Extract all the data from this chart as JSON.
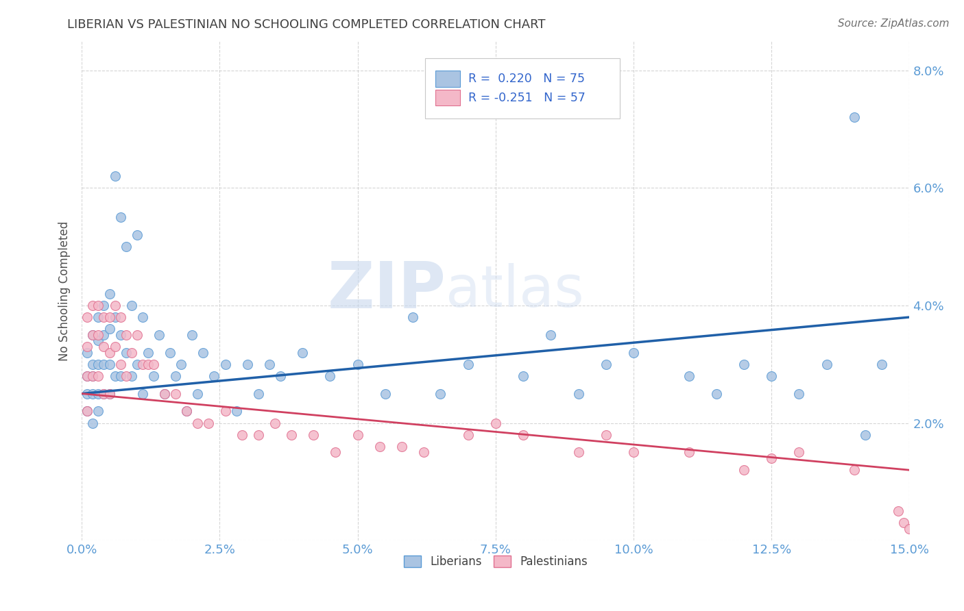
{
  "title": "LIBERIAN VS PALESTINIAN NO SCHOOLING COMPLETED CORRELATION CHART",
  "source_text": "Source: ZipAtlas.com",
  "ylabel": "No Schooling Completed",
  "xlim": [
    0.0,
    0.15
  ],
  "ylim": [
    0.0,
    0.085
  ],
  "xtick_positions": [
    0.0,
    0.025,
    0.05,
    0.075,
    0.1,
    0.125,
    0.15
  ],
  "xtick_labels": [
    "0.0%",
    "2.5%",
    "5.0%",
    "7.5%",
    "10.0%",
    "12.5%",
    "15.0%"
  ],
  "ytick_positions": [
    0.0,
    0.02,
    0.04,
    0.06,
    0.08
  ],
  "ytick_labels": [
    "",
    "2.0%",
    "4.0%",
    "6.0%",
    "8.0%"
  ],
  "liberian_color": "#aac4e2",
  "liberian_edge_color": "#5b9bd5",
  "palestinian_color": "#f4b8c8",
  "palestinian_edge_color": "#e07090",
  "trend_liberian_color": "#2060a8",
  "trend_palestinian_color": "#d04060",
  "trend_lib_y0": 0.025,
  "trend_lib_y1": 0.038,
  "trend_pal_y0": 0.025,
  "trend_pal_y1": 0.012,
  "R_liberian": 0.22,
  "N_liberian": 75,
  "R_palestinian": -0.251,
  "N_palestinian": 57,
  "liberian_x": [
    0.001,
    0.001,
    0.001,
    0.001,
    0.002,
    0.002,
    0.002,
    0.002,
    0.002,
    0.003,
    0.003,
    0.003,
    0.003,
    0.003,
    0.004,
    0.004,
    0.004,
    0.004,
    0.005,
    0.005,
    0.005,
    0.005,
    0.006,
    0.006,
    0.006,
    0.007,
    0.007,
    0.007,
    0.008,
    0.008,
    0.009,
    0.009,
    0.01,
    0.01,
    0.011,
    0.011,
    0.012,
    0.013,
    0.014,
    0.015,
    0.016,
    0.017,
    0.018,
    0.019,
    0.02,
    0.021,
    0.022,
    0.024,
    0.026,
    0.028,
    0.03,
    0.032,
    0.034,
    0.036,
    0.04,
    0.045,
    0.05,
    0.055,
    0.06,
    0.065,
    0.07,
    0.08,
    0.085,
    0.09,
    0.095,
    0.1,
    0.11,
    0.115,
    0.12,
    0.125,
    0.13,
    0.135,
    0.14,
    0.142,
    0.145
  ],
  "liberian_y": [
    0.032,
    0.028,
    0.025,
    0.022,
    0.035,
    0.03,
    0.028,
    0.025,
    0.02,
    0.038,
    0.034,
    0.03,
    0.025,
    0.022,
    0.04,
    0.035,
    0.03,
    0.025,
    0.042,
    0.036,
    0.03,
    0.025,
    0.062,
    0.038,
    0.028,
    0.055,
    0.035,
    0.028,
    0.05,
    0.032,
    0.04,
    0.028,
    0.052,
    0.03,
    0.038,
    0.025,
    0.032,
    0.028,
    0.035,
    0.025,
    0.032,
    0.028,
    0.03,
    0.022,
    0.035,
    0.025,
    0.032,
    0.028,
    0.03,
    0.022,
    0.03,
    0.025,
    0.03,
    0.028,
    0.032,
    0.028,
    0.03,
    0.025,
    0.038,
    0.025,
    0.03,
    0.028,
    0.035,
    0.025,
    0.03,
    0.032,
    0.028,
    0.025,
    0.03,
    0.028,
    0.025,
    0.03,
    0.072,
    0.018,
    0.03
  ],
  "palestinian_x": [
    0.001,
    0.001,
    0.001,
    0.001,
    0.002,
    0.002,
    0.002,
    0.003,
    0.003,
    0.003,
    0.004,
    0.004,
    0.004,
    0.005,
    0.005,
    0.005,
    0.006,
    0.006,
    0.007,
    0.007,
    0.008,
    0.008,
    0.009,
    0.01,
    0.011,
    0.012,
    0.013,
    0.015,
    0.017,
    0.019,
    0.021,
    0.023,
    0.026,
    0.029,
    0.032,
    0.035,
    0.038,
    0.042,
    0.046,
    0.05,
    0.054,
    0.058,
    0.062,
    0.07,
    0.075,
    0.08,
    0.09,
    0.095,
    0.1,
    0.11,
    0.12,
    0.125,
    0.13,
    0.14,
    0.148,
    0.149,
    0.15
  ],
  "palestinian_y": [
    0.038,
    0.033,
    0.028,
    0.022,
    0.04,
    0.035,
    0.028,
    0.04,
    0.035,
    0.028,
    0.038,
    0.033,
    0.025,
    0.038,
    0.032,
    0.025,
    0.04,
    0.033,
    0.038,
    0.03,
    0.035,
    0.028,
    0.032,
    0.035,
    0.03,
    0.03,
    0.03,
    0.025,
    0.025,
    0.022,
    0.02,
    0.02,
    0.022,
    0.018,
    0.018,
    0.02,
    0.018,
    0.018,
    0.015,
    0.018,
    0.016,
    0.016,
    0.015,
    0.018,
    0.02,
    0.018,
    0.015,
    0.018,
    0.015,
    0.015,
    0.012,
    0.014,
    0.015,
    0.012,
    0.005,
    0.003,
    0.002
  ],
  "watermark_zip": "ZIP",
  "watermark_atlas": "atlas",
  "background_color": "#ffffff",
  "grid_color": "#cccccc",
  "title_color": "#404040",
  "axis_label_color": "#5b9bd5",
  "legend_text_color": "#3366cc"
}
